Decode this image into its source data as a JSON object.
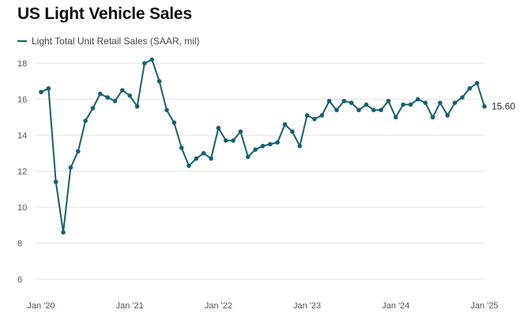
{
  "chart_data": {
    "type": "line",
    "title": "US Light Vehicle Sales",
    "legend_position": "top-left",
    "grid": true,
    "color": "#1a5e70",
    "series": [
      {
        "name": "Light Total Unit Retail Sales (SAAR, mil)",
        "x": [
          "2020-01",
          "2020-02",
          "2020-03",
          "2020-04",
          "2020-05",
          "2020-06",
          "2020-07",
          "2020-08",
          "2020-09",
          "2020-10",
          "2020-11",
          "2020-12",
          "2021-01",
          "2021-02",
          "2021-03",
          "2021-04",
          "2021-05",
          "2021-06",
          "2021-07",
          "2021-08",
          "2021-09",
          "2021-10",
          "2021-11",
          "2021-12",
          "2022-01",
          "2022-02",
          "2022-03",
          "2022-04",
          "2022-05",
          "2022-06",
          "2022-07",
          "2022-08",
          "2022-09",
          "2022-10",
          "2022-11",
          "2022-12",
          "2023-01",
          "2023-02",
          "2023-03",
          "2023-04",
          "2023-05",
          "2023-06",
          "2023-07",
          "2023-08",
          "2023-09",
          "2023-10",
          "2023-11",
          "2023-12",
          "2024-01",
          "2024-02",
          "2024-03",
          "2024-04",
          "2024-05",
          "2024-06",
          "2024-07",
          "2024-08",
          "2024-09",
          "2024-10",
          "2024-11",
          "2024-12",
          "2025-01"
        ],
        "values": [
          16.4,
          16.6,
          11.4,
          8.6,
          12.2,
          13.1,
          14.8,
          15.5,
          16.3,
          16.1,
          15.9,
          16.5,
          16.2,
          15.6,
          18.0,
          18.2,
          17.0,
          15.4,
          14.7,
          13.3,
          12.3,
          12.7,
          13.0,
          12.7,
          14.4,
          13.7,
          13.7,
          14.2,
          12.8,
          13.2,
          13.4,
          13.5,
          13.6,
          14.6,
          14.2,
          13.4,
          15.1,
          14.9,
          15.1,
          15.9,
          15.4,
          15.9,
          15.8,
          15.4,
          15.7,
          15.4,
          15.4,
          15.9,
          15.0,
          15.7,
          15.7,
          16.0,
          15.8,
          15.0,
          15.8,
          15.1,
          15.8,
          16.1,
          16.6,
          16.9,
          15.6
        ]
      }
    ],
    "end_label": "15.60",
    "ylim": [
      6,
      18
    ],
    "yticks": [
      6,
      8,
      10,
      12,
      14,
      16,
      18
    ],
    "xticks": [
      "Jan '20",
      "Jan '21",
      "Jan '22",
      "Jan '23",
      "Jan '24",
      "Jan '25"
    ]
  }
}
